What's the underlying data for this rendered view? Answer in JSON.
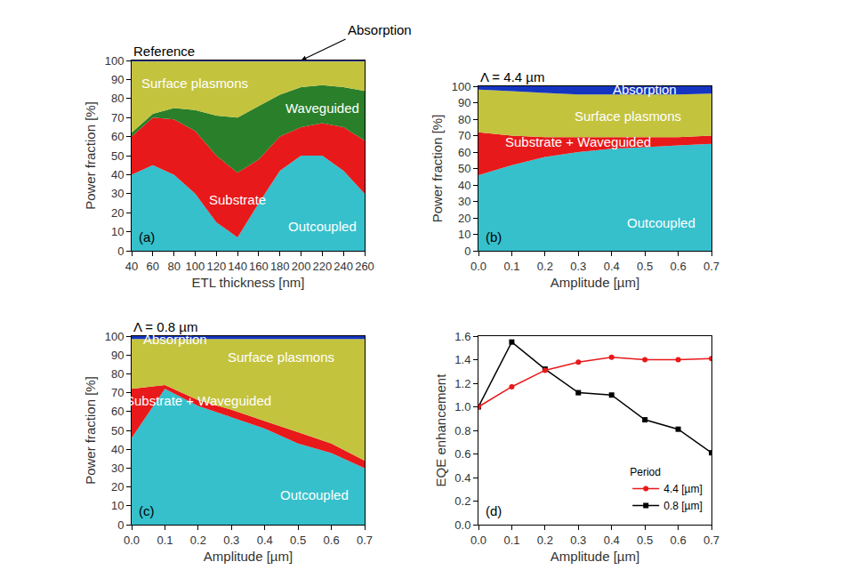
{
  "chart_data": [
    {
      "type": "area",
      "stacked": true,
      "title": "Reference",
      "panel_label": "(a)",
      "x_label": "ETL thickness [nm]",
      "y_label": "Power fraction [%]",
      "x": [
        40,
        60,
        80,
        100,
        120,
        140,
        160,
        180,
        200,
        220,
        240,
        260
      ],
      "xlim": [
        40,
        260
      ],
      "xticks": [
        40,
        60,
        80,
        100,
        120,
        140,
        160,
        180,
        200,
        220,
        240,
        260
      ],
      "ylim": [
        0,
        100
      ],
      "yticks": [
        0,
        10,
        20,
        30,
        40,
        50,
        60,
        70,
        80,
        90,
        100
      ],
      "grid": false,
      "series": [
        {
          "name": "Outcoupled",
          "color": "#35c0cc",
          "values": [
            40,
            45,
            40,
            30,
            15,
            7,
            25,
            42,
            50,
            50,
            42,
            30
          ]
        },
        {
          "name": "Substrate",
          "color": "#e8191a",
          "values": [
            20,
            25,
            29,
            33,
            35,
            34,
            23,
            18,
            15,
            17,
            23,
            28
          ]
        },
        {
          "name": "Waveguided",
          "color": "#2a7f2a",
          "values": [
            2,
            2,
            6,
            11,
            21,
            29,
            28,
            22,
            21,
            20,
            21,
            26
          ]
        },
        {
          "name": "Surface plasmons",
          "color": "#c3c33e",
          "values": [
            37.5,
            27.5,
            24.5,
            25.5,
            28.5,
            29.5,
            23.5,
            17.5,
            13.5,
            12.5,
            13.5,
            15.5
          ]
        },
        {
          "name": "Absorption",
          "color": "#1535c0",
          "values": [
            0.5,
            0.5,
            0.5,
            0.5,
            0.5,
            0.5,
            0.5,
            0.5,
            0.5,
            0.5,
            0.5,
            0.5
          ]
        }
      ],
      "annotations": [
        {
          "text": "Surface plasmons",
          "x": 100,
          "y": 88
        },
        {
          "text": "Waveguided",
          "x": 220,
          "y": 75
        },
        {
          "text": "Substrate",
          "x": 140,
          "y": 27
        },
        {
          "text": "Outcoupled",
          "x": 220,
          "y": 13
        },
        {
          "text": "Absorption",
          "x": 200,
          "y": 100,
          "arrow": true
        }
      ]
    },
    {
      "type": "area",
      "stacked": true,
      "title": "Λ = 4.4 µm",
      "panel_label": "(b)",
      "x_label": "Amplitude [µm]",
      "y_label": "Power fraction [%]",
      "x": [
        0.0,
        0.1,
        0.2,
        0.3,
        0.4,
        0.5,
        0.6,
        0.7
      ],
      "xlim": [
        0,
        0.7
      ],
      "xticks": [
        {
          "value": 0,
          "label": "0.0"
        },
        0.1,
        0.2,
        0.3,
        0.4,
        0.5,
        0.6,
        0.7
      ],
      "ylim": [
        0,
        100
      ],
      "yticks": [
        0,
        10,
        20,
        30,
        40,
        50,
        60,
        70,
        80,
        90,
        100
      ],
      "grid": false,
      "series": [
        {
          "name": "Outcoupled",
          "color": "#35c0cc",
          "values": [
            46,
            52,
            57,
            60,
            62,
            63,
            64,
            65
          ]
        },
        {
          "name": "Substrate + Waveguided",
          "color": "#e8191a",
          "values": [
            26,
            18,
            12,
            9,
            7,
            6,
            5,
            5
          ]
        },
        {
          "name": "Surface plasmons",
          "color": "#c3c33e",
          "values": [
            26,
            27,
            27,
            26,
            26,
            26,
            26,
            25.5
          ]
        },
        {
          "name": "Absorption",
          "color": "#1535c0",
          "values": [
            2,
            3,
            4,
            5,
            5,
            5,
            5,
            4.5
          ]
        }
      ],
      "annotations": [
        {
          "text": "Absorption",
          "x": 0.5,
          "y": 98
        },
        {
          "text": "Surface plasmons",
          "x": 0.45,
          "y": 82
        },
        {
          "text": "Substrate + Waveguided",
          "x": 0.3,
          "y": 66
        },
        {
          "text": "Outcoupled",
          "x": 0.55,
          "y": 17
        }
      ]
    },
    {
      "type": "area",
      "stacked": true,
      "title": "Λ = 0.8 µm",
      "panel_label": "(c)",
      "x_label": "Amplitude [µm]",
      "y_label": "Power fraction [%]",
      "x": [
        0.0,
        0.1,
        0.2,
        0.3,
        0.4,
        0.5,
        0.6,
        0.7
      ],
      "xlim": [
        0,
        0.7
      ],
      "xticks": [
        {
          "value": 0,
          "label": "0.0"
        },
        0.1,
        0.2,
        0.3,
        0.4,
        0.5,
        0.6,
        0.7
      ],
      "ylim": [
        0,
        100
      ],
      "yticks": [
        0,
        10,
        20,
        30,
        40,
        50,
        60,
        70,
        80,
        90,
        100
      ],
      "grid": false,
      "series": [
        {
          "name": "Outcoupled",
          "color": "#35c0cc",
          "values": [
            46,
            72,
            63,
            57,
            51,
            43,
            38,
            30
          ]
        },
        {
          "name": "Substrate + Waveguided",
          "color": "#e8191a",
          "values": [
            26,
            2,
            3,
            4,
            4,
            6,
            5,
            4
          ]
        },
        {
          "name": "Surface plasmons",
          "color": "#c3c33e",
          "values": [
            26.5,
            24.5,
            32.5,
            37.5,
            43.5,
            49.5,
            55.5,
            64.5
          ]
        },
        {
          "name": "Absorption",
          "color": "#1535c0",
          "values": [
            1.5,
            1.5,
            1.5,
            1.5,
            1.5,
            1.5,
            1.5,
            1.5
          ]
        }
      ],
      "annotations": [
        {
          "text": "Absorption",
          "x": 0.13,
          "y": 98.5
        },
        {
          "text": "Surface plasmons",
          "x": 0.45,
          "y": 89
        },
        {
          "text": "Substrate + Waveguided",
          "x": 0.2,
          "y": 66
        },
        {
          "text": "Outcoupled",
          "x": 0.55,
          "y": 16
        }
      ]
    },
    {
      "type": "line",
      "panel_label": "(d)",
      "x_label": "Amplitude [µm]",
      "y_label": "EQE enhancement",
      "x": [
        0.0,
        0.1,
        0.2,
        0.3,
        0.4,
        0.5,
        0.6,
        0.7
      ],
      "xlim": [
        0,
        0.7
      ],
      "xticks": [
        {
          "value": 0,
          "label": "0.0"
        },
        0.1,
        0.2,
        0.3,
        0.4,
        0.5,
        0.6,
        0.7
      ],
      "ylim": [
        0,
        1.6
      ],
      "yticks": [
        {
          "value": 0,
          "label": "0.0"
        },
        0.2,
        0.4,
        0.6,
        0.8,
        {
          "value": 1,
          "label": "1.0"
        },
        1.2,
        1.4,
        1.6
      ],
      "grid": false,
      "legend": "bottom right",
      "legend_title": "Period",
      "series": [
        {
          "name": "0.8 [µm]",
          "color": "#000000",
          "marker": "square",
          "values": [
            1.0,
            1.55,
            1.32,
            1.12,
            1.1,
            0.89,
            0.81,
            0.61
          ]
        },
        {
          "name": "4.4 [µm]",
          "color": "#e8191a",
          "marker": "circle",
          "values": [
            1.0,
            1.17,
            1.31,
            1.38,
            1.42,
            1.4,
            1.4,
            1.41
          ]
        }
      ]
    }
  ]
}
